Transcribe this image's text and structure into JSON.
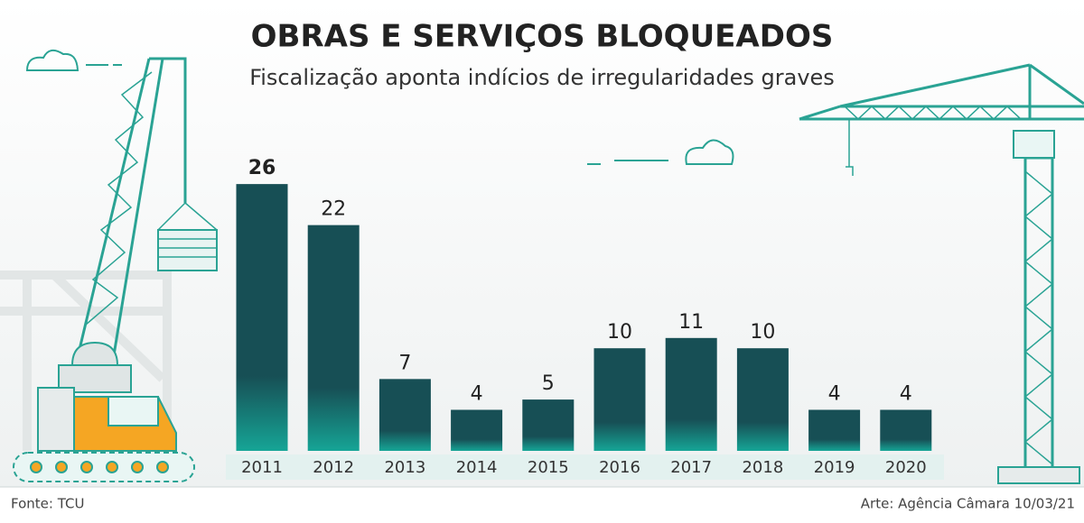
{
  "chart_data": {
    "type": "bar",
    "title": "OBRAS E SERVIÇOS BLOQUEADOS",
    "subtitle": "Fiscalização aponta indícios de irregularidades graves",
    "categories": [
      "2011",
      "2012",
      "2013",
      "2014",
      "2015",
      "2016",
      "2017",
      "2018",
      "2019",
      "2020"
    ],
    "values": [
      26,
      22,
      7,
      4,
      5,
      10,
      11,
      10,
      4,
      4
    ],
    "color": "#174f55",
    "source": "Fonte: TCU",
    "credit": "Arte: Agência Câmara 10/03/21"
  }
}
